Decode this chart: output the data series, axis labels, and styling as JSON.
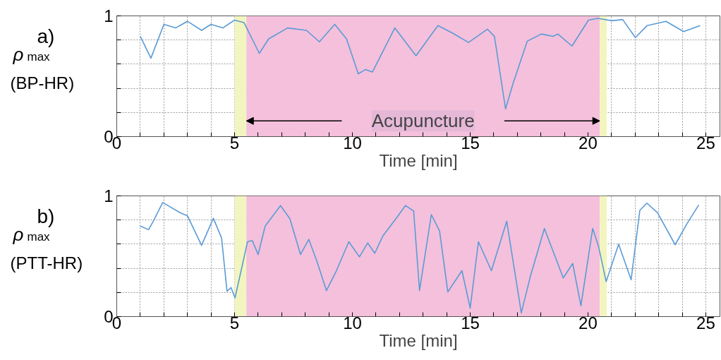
{
  "chart_data": [
    {
      "type": "line",
      "xlabel": "Time [min]",
      "ylabel": "ρ$_{max}$ (BP-HR)",
      "annotations": [
        "a)"
      ],
      "xlim": [
        0,
        25.6
      ],
      "ylim": [
        0,
        1
      ],
      "xticks": [
        0,
        {
          "value": 1,
          "label": null
        },
        {
          "value": 2,
          "label": null
        },
        {
          "value": 3,
          "label": null
        },
        {
          "value": 4,
          "label": null
        },
        5,
        {
          "value": 6,
          "label": null
        },
        {
          "value": 7,
          "label": null
        },
        {
          "value": 8,
          "label": null
        },
        {
          "value": 9,
          "label": null
        },
        10,
        {
          "value": 11,
          "label": null
        },
        {
          "value": 12,
          "label": null
        },
        {
          "value": 13,
          "label": null
        },
        {
          "value": 14,
          "label": null
        },
        15,
        {
          "value": 16,
          "label": null
        },
        {
          "value": 17,
          "label": null
        },
        {
          "value": 18,
          "label": null
        },
        {
          "value": 19,
          "label": null
        },
        20,
        {
          "value": 21,
          "label": null
        },
        {
          "value": 22,
          "label": null
        },
        {
          "value": 23,
          "label": null
        },
        {
          "value": 24,
          "label": null
        },
        25
      ],
      "yticks": [
        0,
        {
          "value": 0.2,
          "label": null
        },
        {
          "value": 0.4,
          "label": null
        },
        {
          "value": 0.6,
          "label": null
        },
        {
          "value": 0.8,
          "label": null
        },
        1
      ],
      "grid": true,
      "bands": [
        {
          "axis": "x",
          "from": 5,
          "to": 5.5,
          "color": "#f2f5c0"
        },
        {
          "axis": "x",
          "from": 5.5,
          "to": 20.5,
          "color": "#f4c0dc",
          "label": "Acupuncture"
        },
        {
          "axis": "x",
          "from": 20.5,
          "to": 20.8,
          "color": "#f2f5c0"
        }
      ],
      "series": [
        {
          "color": "#5b9bd5",
          "x": [
            1.0,
            1.45,
            2.0,
            2.5,
            3.0,
            3.6,
            4.0,
            4.5,
            5.0,
            5.4,
            6.05,
            6.45,
            7.25,
            8.05,
            8.6,
            9.25,
            9.75,
            10.25,
            10.55,
            10.85,
            11.8,
            12.7,
            13.63,
            14.23,
            14.93,
            15.73,
            16.03,
            16.5,
            16.82,
            17.42,
            18.02,
            18.52,
            18.72,
            19.32,
            20.02,
            20.42,
            21.02,
            21.47,
            22.01,
            22.51,
            23.31,
            24.06,
            24.76
          ],
          "values": [
            0.83,
            0.65,
            0.93,
            0.9,
            0.955,
            0.88,
            0.93,
            0.9,
            0.965,
            0.945,
            0.69,
            0.81,
            0.9,
            0.88,
            0.785,
            0.93,
            0.81,
            0.52,
            0.555,
            0.535,
            0.9,
            0.67,
            0.92,
            0.86,
            0.78,
            0.89,
            0.83,
            0.23,
            0.44,
            0.79,
            0.85,
            0.83,
            0.85,
            0.75,
            0.965,
            0.98,
            0.96,
            0.97,
            0.82,
            0.92,
            0.955,
            0.87,
            0.92
          ]
        }
      ]
    },
    {
      "type": "line",
      "xlabel": "Time [min]",
      "ylabel": "ρ$_{max}$ (PTT-HR)",
      "annotations": [
        "b)"
      ],
      "xlim": [
        0,
        25.6
      ],
      "ylim": [
        0,
        1
      ],
      "xticks": [
        0,
        {
          "value": 1,
          "label": null
        },
        {
          "value": 2,
          "label": null
        },
        {
          "value": 3,
          "label": null
        },
        {
          "value": 4,
          "label": null
        },
        5,
        {
          "value": 6,
          "label": null
        },
        {
          "value": 7,
          "label": null
        },
        {
          "value": 8,
          "label": null
        },
        {
          "value": 9,
          "label": null
        },
        10,
        {
          "value": 11,
          "label": null
        },
        {
          "value": 12,
          "label": null
        },
        {
          "value": 13,
          "label": null
        },
        {
          "value": 14,
          "label": null
        },
        15,
        {
          "value": 16,
          "label": null
        },
        {
          "value": 17,
          "label": null
        },
        {
          "value": 18,
          "label": null
        },
        {
          "value": 19,
          "label": null
        },
        20,
        {
          "value": 21,
          "label": null
        },
        {
          "value": 22,
          "label": null
        },
        {
          "value": 23,
          "label": null
        },
        {
          "value": 24,
          "label": null
        },
        25
      ],
      "yticks": [
        0,
        {
          "value": 0.2,
          "label": null
        },
        {
          "value": 0.4,
          "label": null
        },
        {
          "value": 0.6,
          "label": null
        },
        {
          "value": 0.8,
          "label": null
        },
        1
      ],
      "grid": true,
      "bands": [
        {
          "axis": "x",
          "from": 5,
          "to": 5.5,
          "color": "#f2f5c0"
        },
        {
          "axis": "x",
          "from": 5.5,
          "to": 20.5,
          "color": "#f4c0dc"
        },
        {
          "axis": "x",
          "from": 20.5,
          "to": 20.8,
          "color": "#f2f5c0"
        }
      ],
      "series": [
        {
          "color": "#5b9bd5",
          "x": [
            1.0,
            1.35,
            1.55,
            1.95,
            2.7,
            3.0,
            3.6,
            4.1,
            4.45,
            4.68,
            4.85,
            5.02,
            5.55,
            5.75,
            6.0,
            6.3,
            6.95,
            7.35,
            7.8,
            8.15,
            8.5,
            8.9,
            9.3,
            9.85,
            10.3,
            10.65,
            10.95,
            11.3,
            11.9,
            12.25,
            12.6,
            12.85,
            13.35,
            13.7,
            14.05,
            14.65,
            15.0,
            15.35,
            15.9,
            16.55,
            17.17,
            17.55,
            18.15,
            18.95,
            19.35,
            19.7,
            20.2,
            20.45,
            20.77,
            21.3,
            21.83,
            22.2,
            22.5,
            22.95,
            23.7,
            24.2,
            24.7
          ],
          "values": [
            0.75,
            0.72,
            0.79,
            0.945,
            0.86,
            0.835,
            0.59,
            0.815,
            0.65,
            0.21,
            0.24,
            0.155,
            0.62,
            0.63,
            0.515,
            0.75,
            0.92,
            0.81,
            0.515,
            0.64,
            0.455,
            0.215,
            0.37,
            0.62,
            0.495,
            0.61,
            0.525,
            0.67,
            0.825,
            0.92,
            0.875,
            0.215,
            0.845,
            0.71,
            0.205,
            0.38,
            0.07,
            0.62,
            0.38,
            0.79,
            0.03,
            0.33,
            0.73,
            0.32,
            0.44,
            0.09,
            0.73,
            0.58,
            0.29,
            0.6,
            0.305,
            0.88,
            0.94,
            0.86,
            0.595,
            0.77,
            0.925
          ]
        }
      ]
    }
  ]
}
